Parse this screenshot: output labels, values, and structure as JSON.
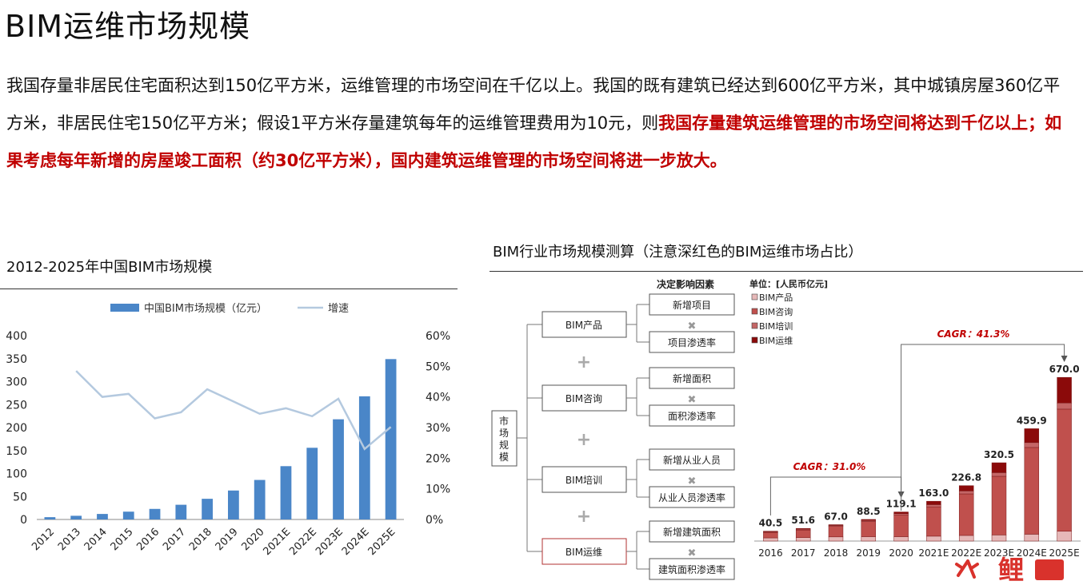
{
  "page": {
    "title": "BIM运维市场规模",
    "paragraph": {
      "normal1": "我国存量非居民住宅面积达到150亿平方米，运维管理的市场空间在千亿以上。我国的既有建筑已经达到600亿平方米，其中城镇房屋360亿平方米，非居民住宅150亿平方米；假设1平方米存量建筑每年的运维管理费用为10元，则",
      "red": "我国存量建筑运维管理的市场空间将达到千亿以上；如果考虑每年新增的房屋竣工面积（约30亿平方米），国内建筑运维管理的市场空间将进一步放大。"
    }
  },
  "chart_data": [
    {
      "type": "bar",
      "title": "2012-2025年中国BIM市场规模",
      "categories": [
        "2012",
        "2013",
        "2014",
        "2015",
        "2016",
        "2017",
        "2018",
        "2019",
        "2020",
        "2021E",
        "2022E",
        "2023E",
        "2024E",
        "2025E"
      ],
      "series": [
        {
          "name": "中国BIM市场规模（亿元）",
          "type": "bar",
          "axis": "left",
          "color": "#4a86c8",
          "values": [
            5,
            8,
            12,
            17,
            23,
            32,
            45,
            63,
            86,
            116,
            156,
            218,
            268,
            349
          ]
        },
        {
          "name": "增速",
          "type": "line",
          "axis": "right",
          "color": "#b4c9df",
          "values": [
            null,
            48.5,
            40,
            41,
            33,
            35,
            42.5,
            38.5,
            34.5,
            36.3,
            33.7,
            39.4,
            23,
            30.2
          ]
        }
      ],
      "left_axis": {
        "ylim": [
          0,
          400
        ],
        "ticks": [
          "0",
          "50",
          "100",
          "150",
          "200",
          "250",
          "300",
          "350",
          "400"
        ]
      },
      "right_axis": {
        "ylim": [
          0,
          60
        ],
        "ticks": [
          "0%",
          "10%",
          "20%",
          "30%",
          "40%",
          "50%",
          "60%"
        ]
      },
      "legend": "top"
    },
    {
      "type": "bar",
      "stacked": true,
      "title": "BIM行业市场规模测算（注意深红色的BIM运维市场占比）",
      "unit_label": "单位：[人民币亿元]",
      "categories": [
        "2016",
        "2017",
        "2018",
        "2019",
        "2020",
        "2021E",
        "2022E",
        "2023E",
        "2024E",
        "2025E"
      ],
      "totals": [
        40.5,
        51.6,
        67.0,
        88.5,
        119.1,
        163.0,
        226.8,
        320.5,
        459.9,
        670.0
      ],
      "total_labels": [
        "40.5",
        "51.6",
        "67.0",
        "88.5",
        "119.1",
        "163.0",
        "226.8",
        "320.5",
        "459.9",
        "670.0"
      ],
      "series": [
        {
          "name": "BIM产品",
          "color": "#e6b8b8",
          "values": [
            13,
            14,
            17,
            18,
            18,
            20,
            23,
            25,
            28,
            40
          ]
        },
        {
          "name": "BIM咨询",
          "color": "#c0504d",
          "values": [
            22,
            31,
            43,
            62,
            88,
            120,
            170,
            240,
            355,
            500
          ]
        },
        {
          "name": "BIM培训",
          "color": "#c46666",
          "values": [
            3,
            3.4,
            4,
            4.5,
            6,
            9,
            12,
            15,
            20,
            25
          ]
        },
        {
          "name": "BIM运维",
          "color": "#8b0a0a",
          "values": [
            2.5,
            3.2,
            3,
            4,
            7.1,
            14,
            21.8,
            40.5,
            56.9,
            105
          ]
        }
      ],
      "annotations": [
        "CAGR：31.0%",
        "CAGR：41.3%"
      ],
      "ylim": [
        0,
        700
      ],
      "legend": "top-left"
    }
  ],
  "diagram": {
    "factor_header": "决定影响因素",
    "root": "市场规模",
    "groups": [
      {
        "name": "BIM产品",
        "f1": "新增项目",
        "f2": "项目渗透率"
      },
      {
        "name": "BIM咨询",
        "f1": "新增面积",
        "f2": "面积渗透率"
      },
      {
        "name": "BIM培训",
        "f1": "新增从业人员",
        "f2": "从业人员渗透率"
      },
      {
        "name": "BIM运维",
        "f1": "新增建筑面积",
        "f2": "建筑面积渗透率"
      }
    ],
    "plus": "+",
    "times": "✖"
  },
  "watermark": {
    "text": "鲤",
    "color": "#d9322c"
  }
}
